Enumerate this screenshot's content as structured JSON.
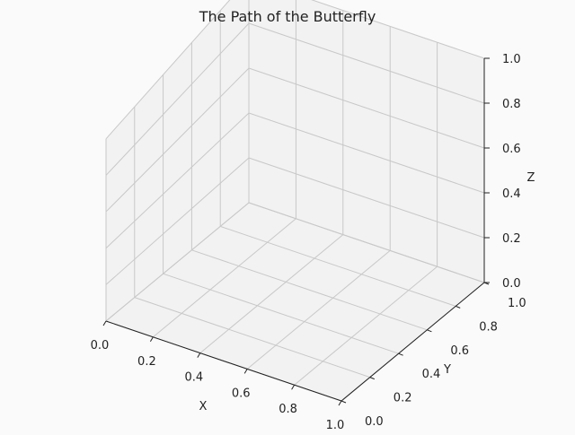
{
  "chart_data": {
    "type": "scatter",
    "projection": "3d",
    "title": "The Path of the Butterfly",
    "xlabel": "X",
    "ylabel": "Y",
    "zlabel": "Z",
    "xlim": [
      0,
      1
    ],
    "ylim": [
      0,
      1
    ],
    "zlim": [
      0,
      1
    ],
    "x_ticks": [
      "0.0",
      "0.2",
      "0.4",
      "0.6",
      "0.8",
      "1.0"
    ],
    "y_ticks": [
      "0.0",
      "0.2",
      "0.4",
      "0.6",
      "0.8",
      "1.0"
    ],
    "z_ticks": [
      "0.0",
      "0.2",
      "0.4",
      "0.6",
      "0.8",
      "1.0"
    ],
    "grid": true,
    "series": []
  },
  "colors": {
    "background": "#fafafa",
    "pane": "#f2f2f2",
    "grid": "#c8c8c8",
    "axis_line": "#222222",
    "text": "#222222"
  }
}
